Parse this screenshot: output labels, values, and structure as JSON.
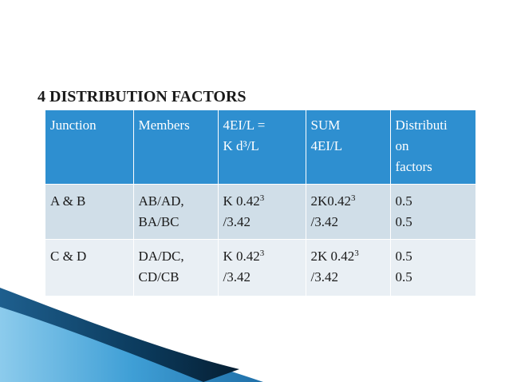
{
  "title": "4 DISTRIBUTION FACTORS",
  "table": {
    "headers": [
      {
        "lines": [
          "Junction"
        ]
      },
      {
        "lines": [
          "Members"
        ]
      },
      {
        "lines": [
          "4EI/L =",
          "K d³/L"
        ]
      },
      {
        "lines": [
          "SUM",
          "4EI/L"
        ]
      },
      {
        "lines": [
          "Distributi",
          "on",
          "factors"
        ]
      }
    ],
    "rows": [
      {
        "junction": "A & B",
        "members": [
          "AB/AD,",
          "BA/BC"
        ],
        "stiffness": {
          "base": "K 0.42",
          "exp": "3",
          "line2": "/3.42"
        },
        "sum": {
          "base": "2K0.42",
          "exp": "3",
          "line2": "/3.42"
        },
        "factors": [
          "0.5",
          "0.5"
        ]
      },
      {
        "junction": "C & D",
        "members": [
          "DA/DC,",
          "CD/CB"
        ],
        "stiffness": {
          "base": "K 0.42",
          "exp": "3",
          "line2": "/3.42"
        },
        "sum": {
          "base": "2K 0.42",
          "exp": "3",
          "line2": "/3.42"
        },
        "factors": [
          "0.5",
          "0.5"
        ]
      }
    ]
  },
  "colors": {
    "header_bg": "#2e8fd0",
    "row1_bg": "#d0dee8",
    "row2_bg": "#e9eff4",
    "accent_dark": "#0b3a5c",
    "accent_light": "#5ab4e4"
  }
}
